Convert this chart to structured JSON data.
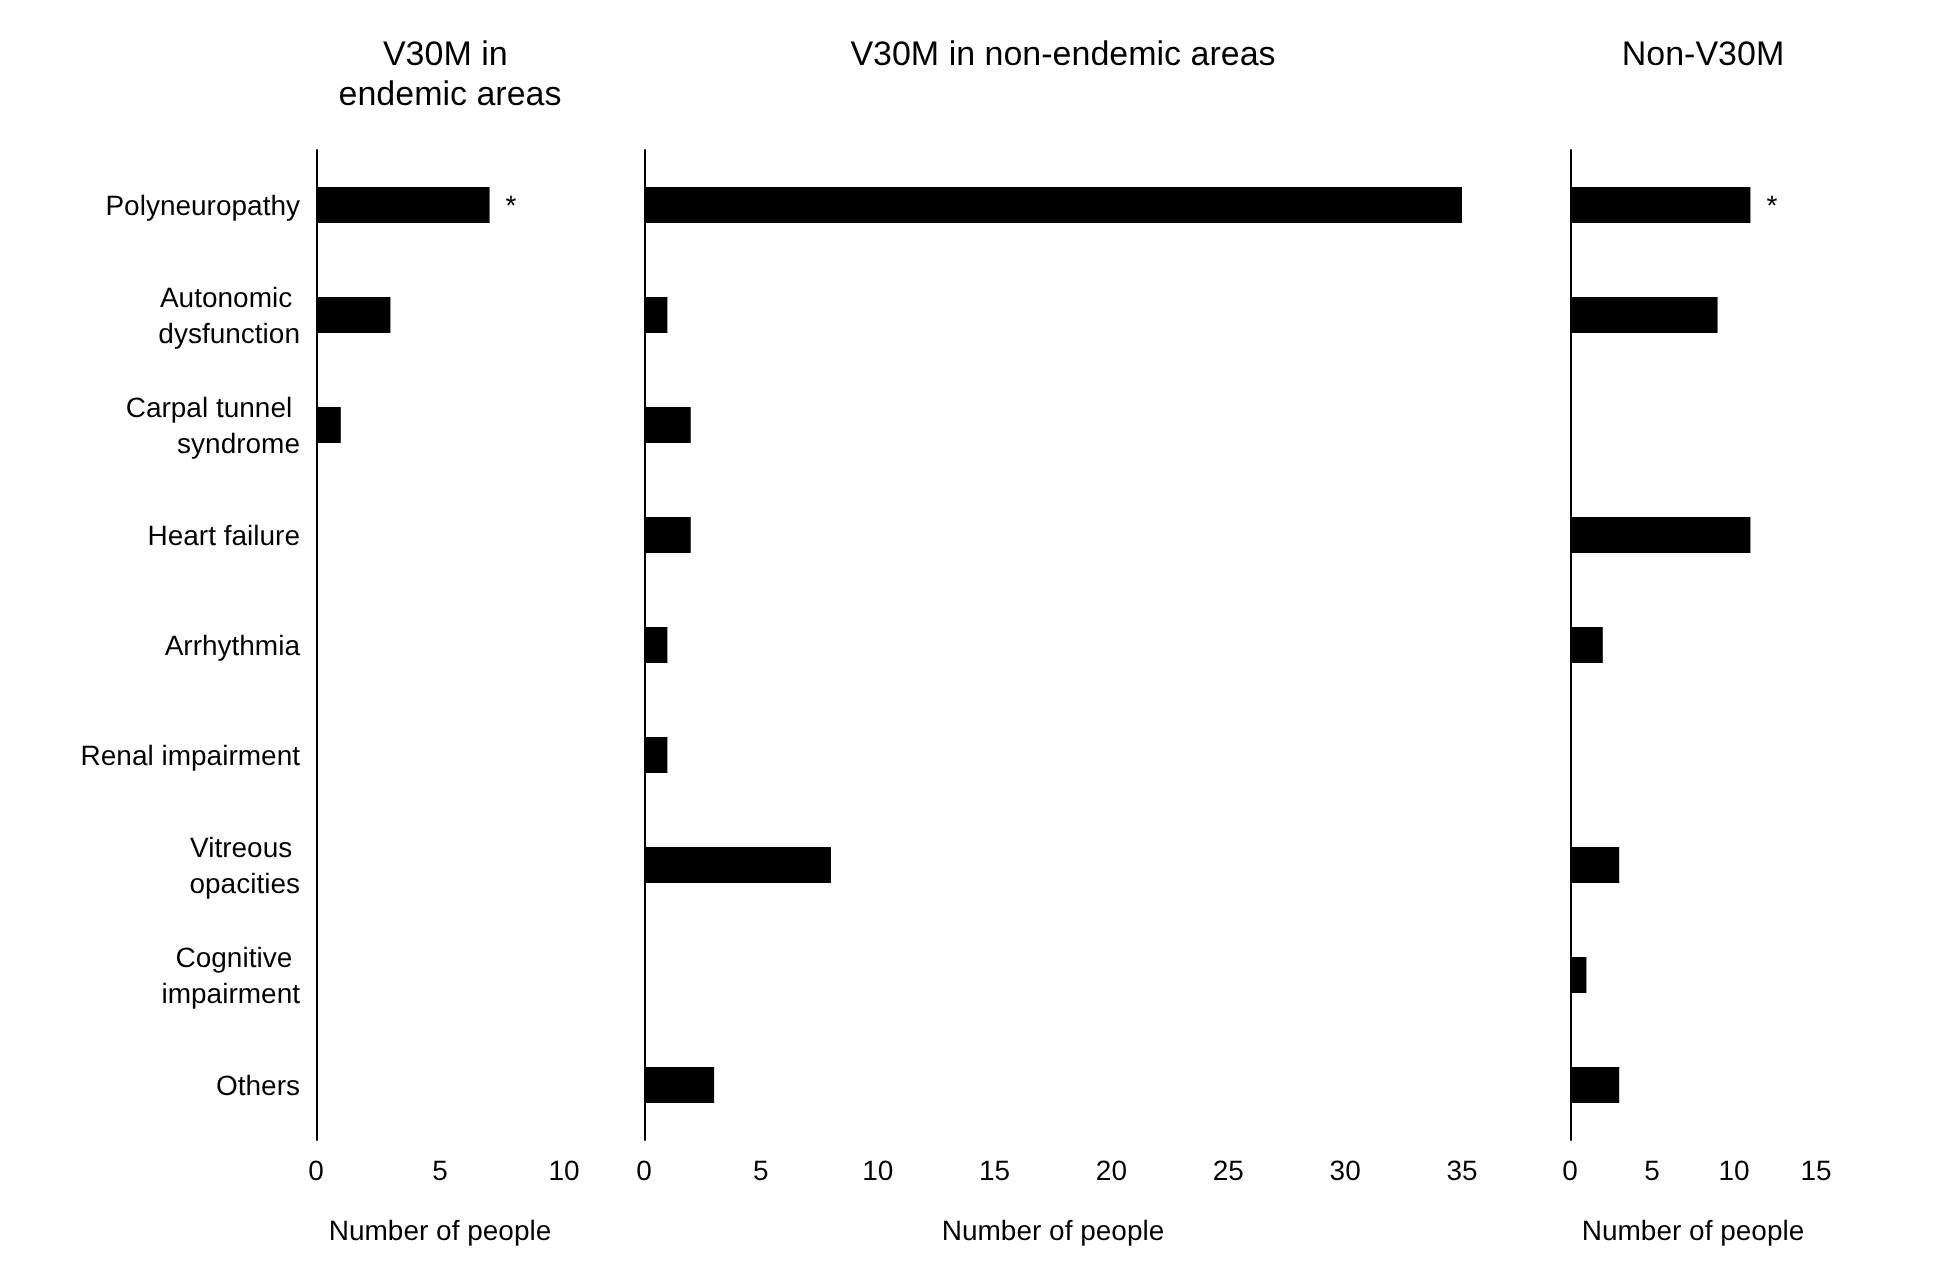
{
  "chart_data": [
    {
      "type": "bar",
      "orientation": "horizontal",
      "title": "V30M in endemic areas",
      "xlabel": "Number of people",
      "categories": [
        "Polyneuropathy",
        "Autonomic dysfunction",
        "Carpal tunnel syndrome",
        "Heart failure",
        "Arrhythmia",
        "Renal impairment",
        "Vitreous opacities",
        "Cognitive impairment",
        "Others"
      ],
      "values": [
        7,
        3,
        1,
        0,
        0,
        0,
        0,
        0,
        0
      ],
      "color": "#000000",
      "xlim": [
        0,
        10
      ],
      "xticks": [
        0,
        5,
        10
      ],
      "grid": false,
      "annotations": [
        {
          "text": "*",
          "x": 7,
          "y": "Polyneuropathy"
        }
      ]
    },
    {
      "type": "bar",
      "orientation": "horizontal",
      "title": "V30M in non-endemic areas",
      "xlabel": "Number of people",
      "categories": [
        "Polyneuropathy",
        "Autonomic dysfunction",
        "Carpal tunnel syndrome",
        "Heart failure",
        "Arrhythmia",
        "Renal impairment",
        "Vitreous opacities",
        "Cognitive impairment",
        "Others"
      ],
      "values": [
        35,
        1,
        2,
        2,
        1,
        1,
        8,
        0,
        3
      ],
      "color": "#000000",
      "xlim": [
        0,
        35
      ],
      "xticks": [
        0,
        5,
        10,
        15,
        20,
        25,
        30,
        35
      ],
      "grid": false,
      "tick_labels": "x"
    },
    {
      "type": "bar",
      "orientation": "horizontal",
      "title": "Non-V30M",
      "xlabel": "Number of people",
      "categories": [
        "Polyneuropathy",
        "Autonomic dysfunction",
        "Carpal tunnel syndrome",
        "Heart failure",
        "Arrhythmia",
        "Renal impairment",
        "Vitreous opacities",
        "Cognitive impairment",
        "Others"
      ],
      "values": [
        11,
        9,
        0,
        11,
        2,
        0,
        3,
        1,
        3
      ],
      "color": "#000000",
      "xlim": [
        0,
        15
      ],
      "xticks": [
        0,
        5,
        10,
        15
      ],
      "grid": false,
      "tick_labels": "x",
      "annotations": [
        {
          "text": "*",
          "x": 11,
          "y": "Polyneuropathy"
        }
      ]
    }
  ]
}
